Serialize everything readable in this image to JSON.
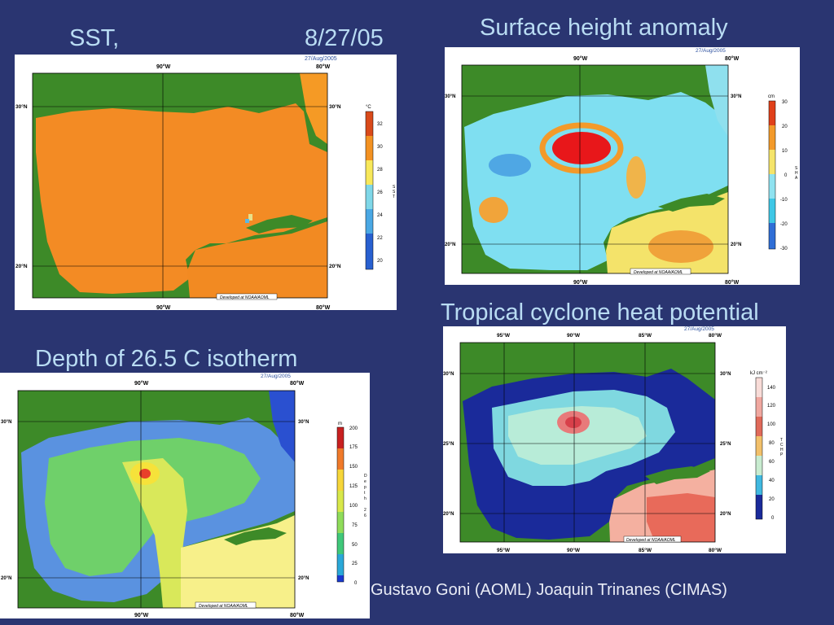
{
  "slide": {
    "sst_title": "SST,",
    "sst_date": "8/27/05",
    "sha_title": "Surface height anomaly",
    "tchp_title": "Tropical cyclone heat potential",
    "d26_title": "Depth of 26.5 C isotherm",
    "credit": "Gustavo Goni (AOML) Joaquin Trinanes (CIMAS)"
  },
  "maps": {
    "sst": {
      "date": "27/Aug/2005",
      "lon_labels": [
        "90°W",
        "80°W"
      ],
      "lat_labels": [
        "30°N",
        "20°N"
      ],
      "units": "°C",
      "ticks": [
        "32",
        "30",
        "28",
        "26",
        "24",
        "22",
        "20"
      ],
      "var": [
        "S",
        "S",
        "T"
      ],
      "footer": "Developed at NOAA/AOML"
    },
    "sha": {
      "date": "27/Aug/2005",
      "lon_labels": [
        "90°W",
        "80°W"
      ],
      "lat_labels": [
        "30°N",
        "20°N"
      ],
      "units": "cm",
      "ticks": [
        "30",
        "20",
        "10",
        "0",
        "-10",
        "-20",
        "-30"
      ],
      "var": [
        "S",
        "H",
        "A"
      ],
      "footer": "Developed at NOAA/AOML"
    },
    "d26": {
      "date": "27/Aug/2005",
      "lon_labels": [
        "90°W",
        "80°W"
      ],
      "lat_labels": [
        "30°N",
        "20°N"
      ],
      "units": "m",
      "ticks": [
        "200",
        "175",
        "150",
        "125",
        "100",
        "75",
        "50",
        "25",
        "0"
      ],
      "var": [
        "D",
        "e",
        "p",
        "t",
        "h",
        "2",
        "6"
      ],
      "footer": "Developed at NOAA/AOML"
    },
    "tchp": {
      "date": "27/Aug/2005",
      "lon_labels": [
        "95°W",
        "90°W",
        "85°W",
        "80°W"
      ],
      "lat_labels": [
        "30°N",
        "25°N",
        "20°N"
      ],
      "units": "kJ cm⁻²",
      "ticks": [
        "140",
        "120",
        "100",
        "80",
        "60",
        "40",
        "20",
        "0"
      ],
      "var": [
        "T",
        "C",
        "H",
        "P"
      ],
      "footer": "Developed at NOAA/AOML"
    }
  },
  "colors": {
    "background": "#2a3571",
    "heading": "#b9dcf3",
    "land": "#3d8a28"
  }
}
